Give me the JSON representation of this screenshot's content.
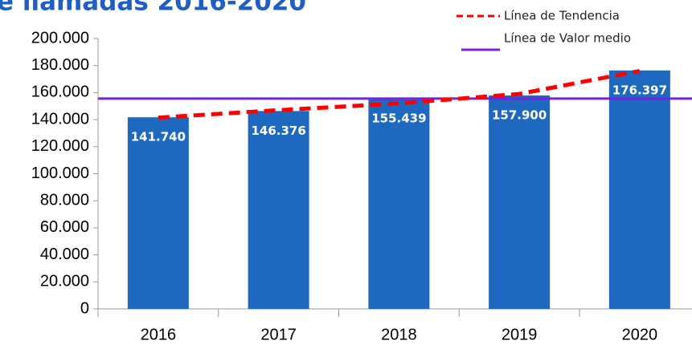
{
  "chart_data": {
    "type": "bar",
    "title": "e llamadas 2016-2020",
    "categories": [
      "2016",
      "2017",
      "2018",
      "2019",
      "2020"
    ],
    "values": [
      141740,
      146376,
      155439,
      157900,
      176397
    ],
    "value_labels": [
      "141.740",
      "146.376",
      "155.439",
      "157.900",
      "176.397"
    ],
    "color": "#1f68bf",
    "ylim": [
      0,
      200000
    ],
    "yticks": [
      0,
      {
        "value": 20000,
        "label": "20.000"
      },
      {
        "value": 40000,
        "label": "40.000"
      },
      {
        "value": 60000,
        "label": "60.000"
      },
      {
        "value": 80000,
        "label": "80.000"
      },
      {
        "value": 100000,
        "label": "100.000"
      },
      {
        "value": 120000,
        "label": "120.000"
      },
      {
        "value": 140000,
        "label": "140.000"
      },
      {
        "value": 160000,
        "label": "160.000"
      },
      {
        "value": 180000,
        "label": "180.000"
      },
      {
        "value": 200000,
        "label": "200.000"
      }
    ],
    "trend": {
      "name": "Línea de Tendencia",
      "color": "#ff0000",
      "values": [
        141500,
        147000,
        152000,
        159000,
        176000
      ]
    },
    "mean": {
      "name": "Línea de Valor medio",
      "color": "#7b1fe0",
      "value": 155570.4
    }
  }
}
